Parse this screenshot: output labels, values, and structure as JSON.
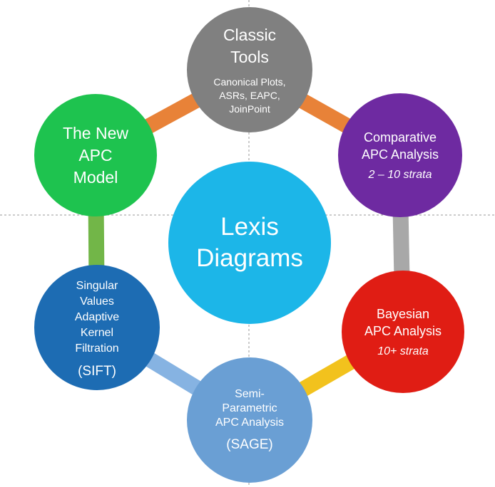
{
  "diagram": {
    "center": {
      "title": "Lexis\nDiagrams",
      "color": "#1cb6e8"
    },
    "nodes": [
      {
        "id": "classic-tools",
        "title": "Classic\nTools",
        "subtitle": "Canonical Plots,\nASRs, EAPC,\nJoinPoint",
        "color": "#808080",
        "connector_color": "#e88238"
      },
      {
        "id": "comparative",
        "title": "Comparative\nAPC Analysis",
        "note": "2 – 10 strata",
        "color": "#6e2aa1",
        "connector_color": "#a8a8a8"
      },
      {
        "id": "bayesian",
        "title": "Bayesian\nAPC Analysis",
        "note": "10+ strata",
        "color": "#e01d14",
        "connector_color": "#f2c21d"
      },
      {
        "id": "sage",
        "title": "Semi-\nParametric\nAPC Analysis",
        "acronym": "(SAGE)",
        "color": "#6a9fd4",
        "connector_color": "#86b3e2"
      },
      {
        "id": "sift",
        "title": "Singular\nValues\nAdaptive\nKernel\nFiltration",
        "acronym": "(SIFT)",
        "color": "#1d6cb3",
        "connector_color": "#72b648"
      },
      {
        "id": "new-apc",
        "title": "The New\nAPC\nModel",
        "color": "#1ec34f",
        "connector_color": "#e88238"
      }
    ],
    "guide_color": "#9a9a9a"
  }
}
